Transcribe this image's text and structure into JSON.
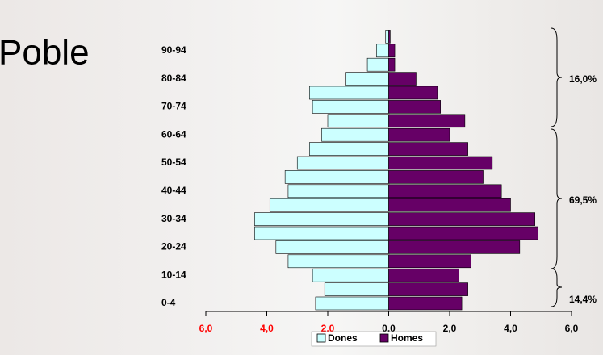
{
  "chart_data": {
    "type": "bar",
    "orientation": "horizontal",
    "title": "Poble",
    "categories": [
      "0-4",
      null,
      "10-14",
      null,
      "20-24",
      null,
      "30-34",
      null,
      "40-44",
      null,
      "50-54",
      null,
      "60-64",
      null,
      "70-74",
      null,
      "80-84",
      null,
      "90-94",
      null
    ],
    "series": [
      {
        "name": "Dones",
        "color": "#ccffff",
        "values": [
          -2.4,
          -2.1,
          -2.5,
          -3.3,
          -3.7,
          -4.4,
          -4.4,
          -3.9,
          -3.3,
          -3.4,
          -3.0,
          -2.6,
          -2.2,
          -2.0,
          -2.5,
          -2.6,
          -1.4,
          -0.7,
          -0.4,
          -0.1
        ]
      },
      {
        "name": "Homes",
        "color": "#660066",
        "values": [
          2.4,
          2.6,
          2.3,
          2.7,
          4.3,
          4.9,
          4.8,
          4.0,
          3.7,
          3.1,
          3.4,
          2.6,
          2.0,
          2.5,
          1.7,
          1.6,
          0.9,
          0.2,
          0.2,
          0.05
        ]
      }
    ],
    "xlim": [
      -6,
      6
    ],
    "xticks": [
      {
        "value": -6,
        "label": "6,0"
      },
      {
        "value": -4,
        "label": "4,0"
      },
      {
        "value": -2,
        "label": "2,0"
      },
      {
        "value": 0,
        "label": "0,0"
      },
      {
        "value": 2,
        "label": "2,0"
      },
      {
        "value": 4,
        "label": "4,0"
      },
      {
        "value": 6,
        "label": "6,0"
      }
    ],
    "annotations": [
      "14,4%",
      "69,5%",
      "16,0%"
    ]
  }
}
